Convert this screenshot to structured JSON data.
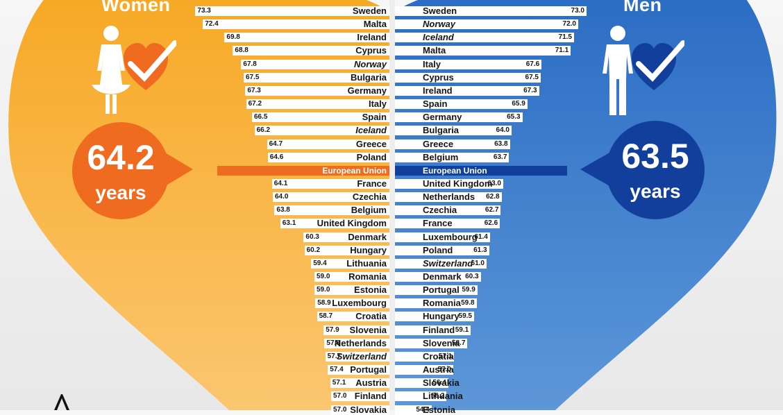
{
  "women": {
    "title": "Women",
    "value": "64.2",
    "unit": "years",
    "color": "#f6ab2c",
    "accent": "#ee6b1f"
  },
  "men": {
    "title": "Men",
    "value": "63.5",
    "unit": "years",
    "color": "#3b7fd0",
    "accent": "#123f9c"
  },
  "chart_data": [
    {
      "type": "bar",
      "categories": [
        "Sweden",
        "Malta",
        "Ireland",
        "Cyprus",
        "Norway",
        "Bulgaria",
        "Germany",
        "Italy",
        "Spain",
        "Iceland",
        "Greece",
        "Poland",
        "European Union",
        "France",
        "Czechia",
        "Belgium",
        "United Kingdom",
        "Denmark",
        "Hungary",
        "Lithuania",
        "Romania",
        "Estonia",
        "Luxembourg",
        "Croatia",
        "Slovenia",
        "Netherlands",
        "Switzerland",
        "Portugal",
        "Austria",
        "Finland",
        "Slovakia"
      ],
      "values": [
        73.3,
        72.4,
        69.8,
        68.8,
        67.8,
        67.5,
        67.3,
        67.2,
        66.5,
        66.2,
        64.7,
        64.6,
        64.2,
        64.1,
        64.0,
        63.8,
        63.1,
        60.3,
        60.2,
        59.4,
        59.0,
        59.0,
        58.9,
        58.7,
        57.9,
        57.8,
        57.7,
        57.4,
        57.1,
        57.0,
        57.0
      ],
      "value_labels": [
        "73.3",
        "72.4",
        "69.8",
        "68.8",
        "67.8",
        "67.5",
        "67.3",
        "67.2",
        "66.5",
        "66.2",
        "64.7",
        "64.6",
        "",
        "64.1",
        "64.0",
        "63.8",
        "63.1",
        "60.3",
        "60.2",
        "59.4",
        "59.0",
        "59.0",
        "58.9",
        "58.7",
        "57.9",
        "57.8",
        "57.7",
        "57.4",
        "57.1",
        "57.0",
        "57.0"
      ],
      "italic_categories": [
        "Norway",
        "Iceland",
        "Switzerland"
      ],
      "highlight_category": "European Union",
      "title": "Women",
      "xlabel": "",
      "ylabel": ""
    },
    {
      "type": "bar",
      "categories": [
        "Sweden",
        "Norway",
        "Iceland",
        "Malta",
        "Italy",
        "Cyprus",
        "Ireland",
        "Spain",
        "Germany",
        "Bulgaria",
        "Greece",
        "Belgium",
        "European Union",
        "United Kingdom",
        "Netherlands",
        "Czechia",
        "France",
        "Luxembourg",
        "Poland",
        "Switzerland",
        "Denmark",
        "Portugal",
        "Romania",
        "Hungary",
        "Finland",
        "Slovenia",
        "Croatia",
        "Austria",
        "Slovakia",
        "Lithuania",
        "Estonia"
      ],
      "values": [
        73.0,
        72.0,
        71.5,
        71.1,
        67.6,
        67.5,
        67.3,
        65.9,
        65.3,
        64.0,
        63.8,
        63.7,
        63.5,
        63.0,
        62.8,
        62.7,
        62.6,
        61.4,
        61.3,
        61.0,
        60.3,
        59.9,
        59.8,
        59.5,
        59.1,
        58.7,
        57.1,
        57.0,
        56.4,
        56.2,
        54.4
      ],
      "value_labels": [
        "73.0",
        "72.0",
        "71.5",
        "71.1",
        "67.6",
        "67.5",
        "67.3",
        "65.9",
        "65.3",
        "64.0",
        "63.8",
        "63.7",
        "",
        "63.0",
        "62.8",
        "62.7",
        "62.6",
        "61.4",
        "61.3",
        "61.0",
        "60.3",
        "59.9",
        "59.8",
        "59.5",
        "59.1",
        "58.7",
        "57.1",
        "57.0",
        "56.4",
        "56.2",
        "54.4"
      ],
      "italic_categories": [
        "Norway",
        "Iceland",
        "Switzerland"
      ],
      "highlight_category": "European Union",
      "title": "Men",
      "xlabel": "",
      "ylabel": ""
    }
  ]
}
